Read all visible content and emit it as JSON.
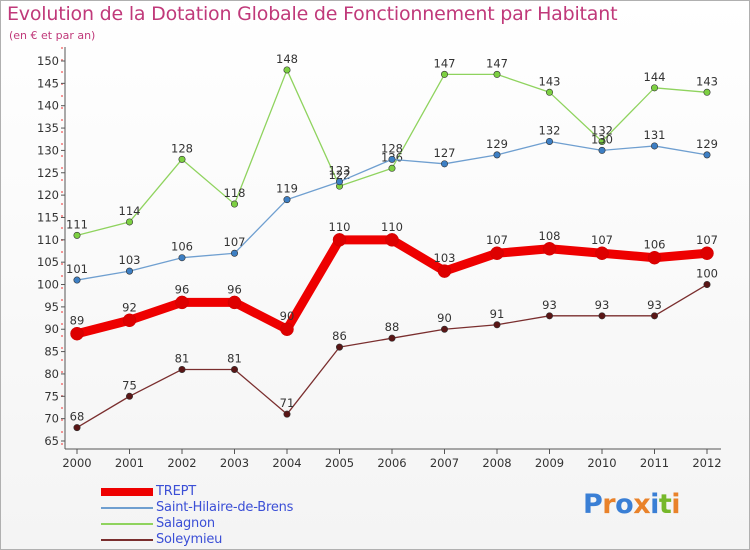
{
  "header": {
    "title": "Evolution de la Dotation Globale de Fonctionnement par Habitant",
    "subtitle": "(en € et par an)"
  },
  "logo": {
    "text": "Proxiti",
    "letter_colors": [
      "#3a7fd5",
      "#e9822a",
      "#3a7fd5",
      "#e9822a",
      "#3a7fd5",
      "#76b82a",
      "#e9822a"
    ]
  },
  "chart_data": {
    "type": "line",
    "title": "Evolution de la Dotation Globale de Fonctionnement par Habitant",
    "subtitle": "(en € et par an)",
    "xlabel": "",
    "ylabel": "",
    "ylim": [
      65,
      150
    ],
    "y_ticks": [
      65,
      70,
      75,
      80,
      85,
      90,
      95,
      100,
      105,
      110,
      115,
      120,
      125,
      130,
      135,
      140,
      145,
      150
    ],
    "categories": [
      "2000",
      "2001",
      "2002",
      "2003",
      "2004",
      "2005",
      "2006",
      "2007",
      "2008",
      "2009",
      "2010",
      "2011",
      "2012"
    ],
    "grid": false,
    "legend_position": "bottom-left",
    "series": [
      {
        "name": "Soleymieu",
        "color": "#7a2e2e",
        "marker": "#5a1616",
        "emphasis": false,
        "values": [
          68,
          75,
          81,
          81,
          71,
          86,
          88,
          90,
          91,
          93,
          93,
          93,
          100
        ]
      },
      {
        "name": "Salagnon",
        "color": "#8fd35e",
        "marker": "#7dd042",
        "emphasis": false,
        "values": [
          111,
          114,
          128,
          118,
          148,
          122,
          126,
          147,
          147,
          143,
          132,
          144,
          143
        ]
      },
      {
        "name": "Saint-Hilaire-de-Brens",
        "color": "#6f9fd0",
        "marker": "#3d7fc4",
        "emphasis": false,
        "values": [
          101,
          103,
          106,
          107,
          119,
          123,
          128,
          127,
          129,
          132,
          130,
          131,
          129
        ]
      },
      {
        "name": "TREPT",
        "color": "#ee0000",
        "marker": "#dd0000",
        "emphasis": true,
        "values": [
          89,
          92,
          96,
          96,
          90,
          110,
          110,
          103,
          107,
          108,
          107,
          106,
          107
        ]
      }
    ],
    "legend_order": [
      "TREPT",
      "Saint-Hilaire-de-Brens",
      "Salagnon",
      "Soleymieu"
    ]
  }
}
